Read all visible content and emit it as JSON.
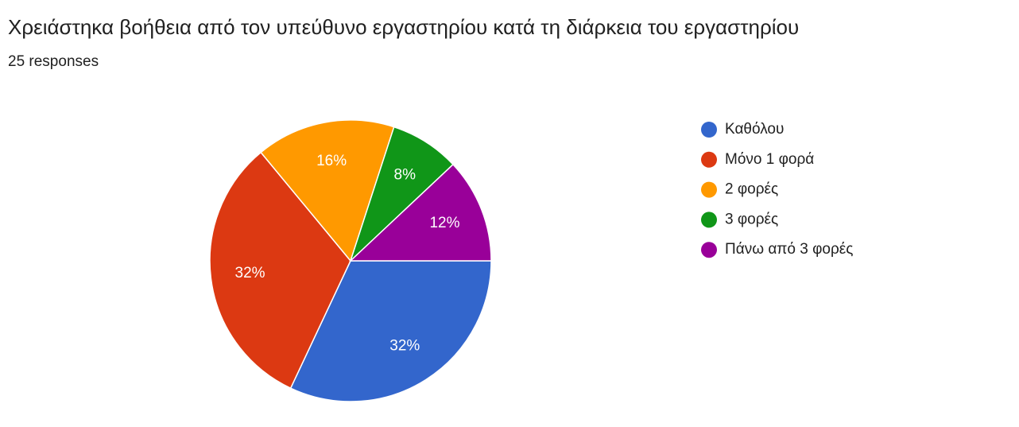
{
  "chart_data": {
    "type": "pie",
    "title": "Χρειάστηκα βοήθεια από τον υπεύθυνο εργαστηρίου κατά τη διάρκεια του εργαστηρίου",
    "subtitle": "25 responses",
    "categories": [
      "Καθόλου",
      "Μόνο 1 φορά",
      "2 φορές",
      "3 φορές",
      "Πάνω από 3 φορές"
    ],
    "values": [
      32,
      32,
      16,
      8,
      12
    ],
    "value_labels": [
      "32%",
      "32%",
      "16%",
      "8%",
      "12%"
    ],
    "colors": [
      "#3366cc",
      "#dc3912",
      "#ff9900",
      "#109618",
      "#990099"
    ]
  }
}
